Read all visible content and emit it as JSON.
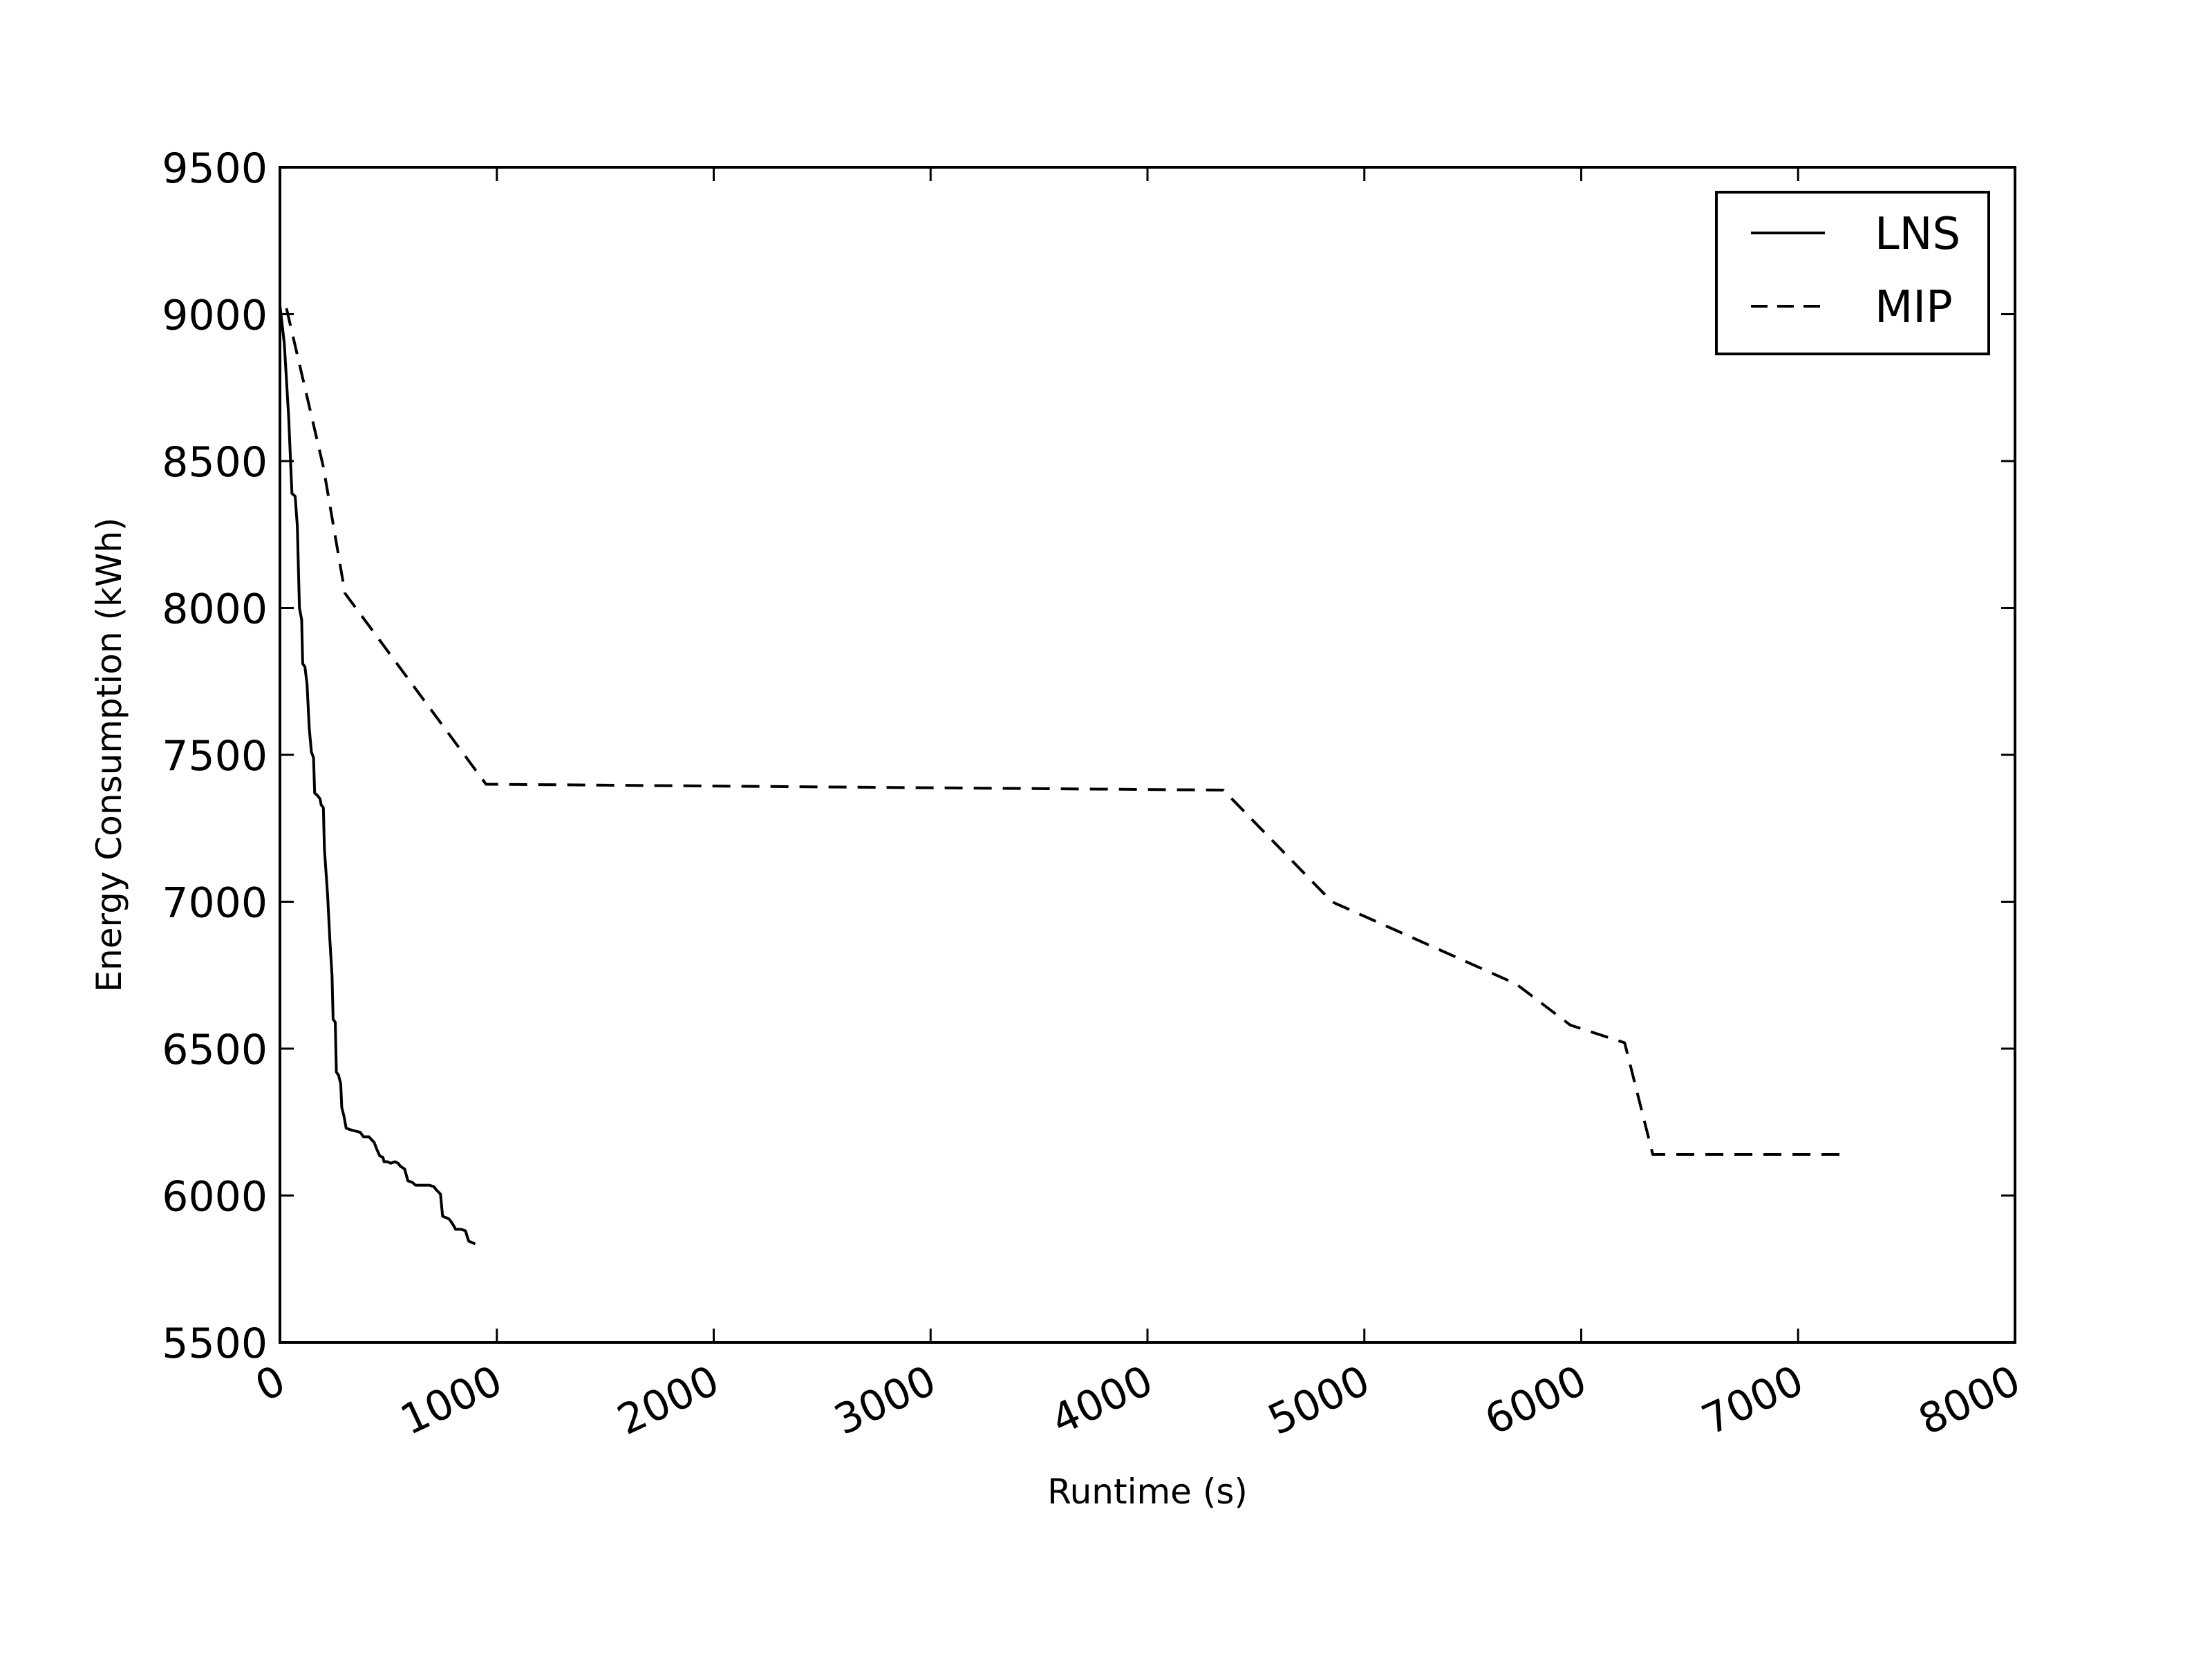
{
  "chart_data": {
    "type": "line",
    "title": "",
    "xlabel": "Runtime (s)",
    "ylabel": "Energy Consumption (kWh)",
    "xlim": [
      0,
      8000
    ],
    "ylim": [
      5500,
      9500
    ],
    "x_ticks": [
      "0",
      "1000",
      "2000",
      "3000",
      "4000",
      "5000",
      "6000",
      "7000",
      "8000"
    ],
    "y_ticks": [
      "5500",
      "6000",
      "6500",
      "7000",
      "7500",
      "8000",
      "8500",
      "9000",
      "9500"
    ],
    "grid": false,
    "legend_position": "top-right",
    "series": [
      {
        "name": "LNS",
        "style": "solid",
        "color": "#000000",
        "points": [
          [
            0,
            9030
          ],
          [
            20,
            8900
          ],
          [
            40,
            8650
          ],
          [
            55,
            8390
          ],
          [
            70,
            8380
          ],
          [
            80,
            8280
          ],
          [
            90,
            8000
          ],
          [
            100,
            7960
          ],
          [
            105,
            7810
          ],
          [
            115,
            7800
          ],
          [
            125,
            7740
          ],
          [
            135,
            7590
          ],
          [
            145,
            7510
          ],
          [
            155,
            7490
          ],
          [
            160,
            7370
          ],
          [
            175,
            7360
          ],
          [
            185,
            7350
          ],
          [
            190,
            7330
          ],
          [
            200,
            7320
          ],
          [
            205,
            7180
          ],
          [
            220,
            7020
          ],
          [
            230,
            6870
          ],
          [
            240,
            6750
          ],
          [
            245,
            6600
          ],
          [
            255,
            6590
          ],
          [
            260,
            6420
          ],
          [
            270,
            6410
          ],
          [
            280,
            6380
          ],
          [
            285,
            6300
          ],
          [
            295,
            6270
          ],
          [
            305,
            6230
          ],
          [
            320,
            6225
          ],
          [
            345,
            6220
          ],
          [
            370,
            6215
          ],
          [
            385,
            6200
          ],
          [
            410,
            6200
          ],
          [
            435,
            6180
          ],
          [
            445,
            6160
          ],
          [
            460,
            6135
          ],
          [
            475,
            6130
          ],
          [
            480,
            6115
          ],
          [
            495,
            6115
          ],
          [
            510,
            6110
          ],
          [
            530,
            6115
          ],
          [
            545,
            6110
          ],
          [
            555,
            6100
          ],
          [
            575,
            6090
          ],
          [
            590,
            6050
          ],
          [
            610,
            6045
          ],
          [
            625,
            6035
          ],
          [
            660,
            6035
          ],
          [
            690,
            6035
          ],
          [
            710,
            6030
          ],
          [
            720,
            6020
          ],
          [
            740,
            6005
          ],
          [
            750,
            5930
          ],
          [
            765,
            5925
          ],
          [
            780,
            5920
          ],
          [
            795,
            5905
          ],
          [
            810,
            5885
          ],
          [
            835,
            5885
          ],
          [
            855,
            5880
          ],
          [
            870,
            5845
          ],
          [
            900,
            5835
          ]
        ]
      },
      {
        "name": "MIP",
        "style": "dashed",
        "color": "#000000",
        "points": [
          [
            30,
            9020
          ],
          [
            200,
            8480
          ],
          [
            300,
            8050
          ],
          [
            500,
            7850
          ],
          [
            950,
            7400
          ],
          [
            4350,
            7380
          ],
          [
            4850,
            7000
          ],
          [
            5700,
            6720
          ],
          [
            5950,
            6580
          ],
          [
            6200,
            6520
          ],
          [
            6330,
            6140
          ],
          [
            7200,
            6140
          ]
        ]
      }
    ]
  }
}
